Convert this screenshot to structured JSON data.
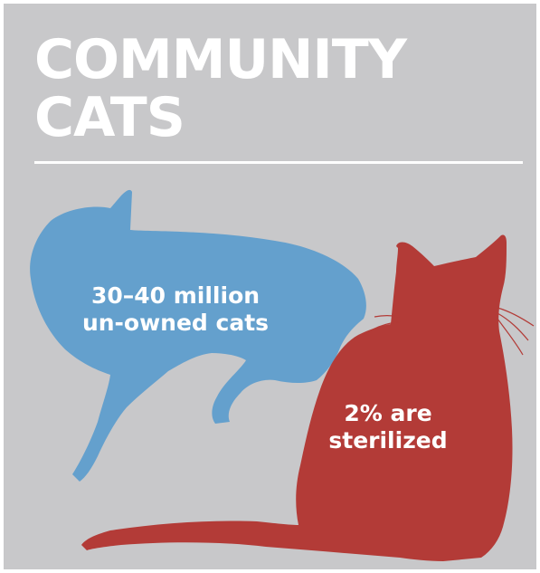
{
  "title": {
    "line1": "COMMUNITY",
    "line2": "CATS"
  },
  "stats": {
    "unowned": {
      "line1": "30–40 million",
      "line2": "un-owned cats"
    },
    "sterilized": {
      "line1": "2% are",
      "line2": "sterilized"
    }
  },
  "colors": {
    "background": "#c8c8ca",
    "blue_cat": "#64a0cd",
    "red_cat": "#b33b37",
    "text": "#ffffff"
  }
}
